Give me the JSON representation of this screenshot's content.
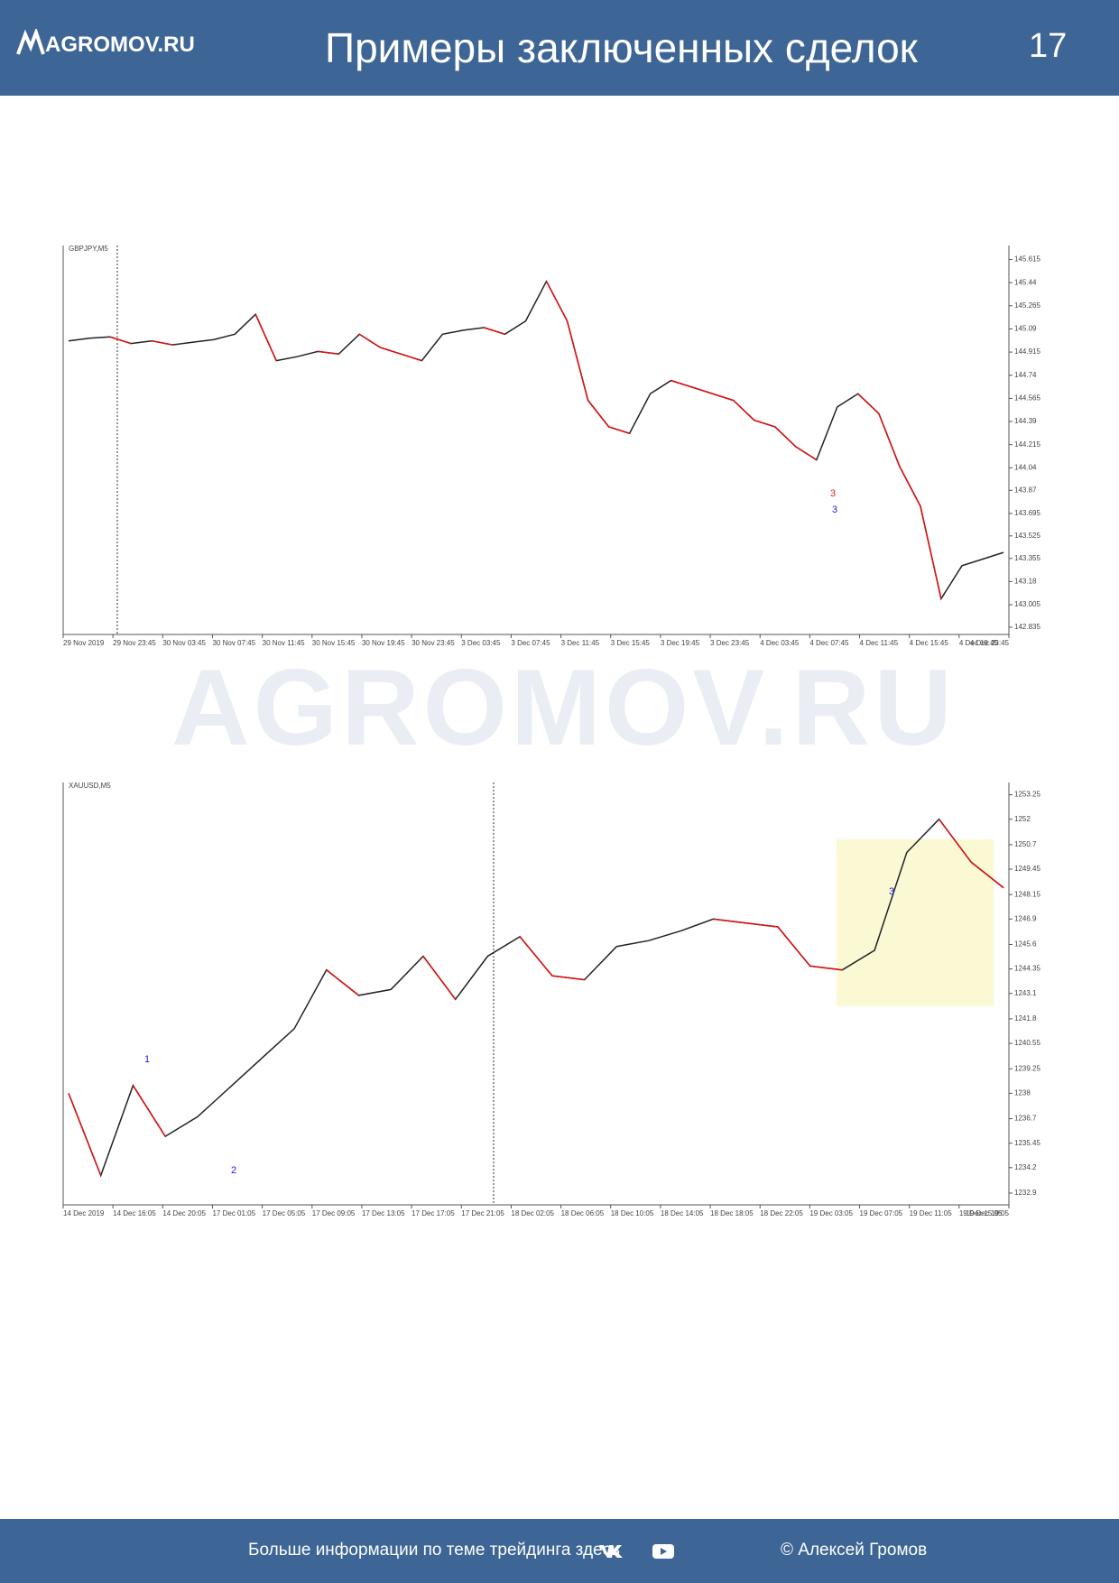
{
  "header": {
    "logo": "AGROMOV.RU",
    "title": "Примеры заключенных сделок",
    "page": "17"
  },
  "watermark": "AGROMOV.RU",
  "chart_data": [
    {
      "type": "line",
      "title": "GBPJPY,M5",
      "color": "#222222",
      "x_tick_labels": [
        "29 Nov 2019",
        "29 Nov 23:45",
        "30 Nov 03:45",
        "30 Nov 07:45",
        "30 Nov 11:45",
        "30 Nov 15:45",
        "30 Nov 19:45",
        "30 Nov 23:45",
        "3 Dec 03:45",
        "3 Dec 07:45",
        "3 Dec 11:45",
        "3 Dec 15:45",
        "3 Dec 19:45",
        "3 Dec 23:45",
        "4 Dec 03:45",
        "4 Dec 07:45",
        "4 Dec 11:45",
        "4 Dec 15:45",
        "4 Dec 19:45",
        "4 Dec 23:45"
      ],
      "values": [
        145.0,
        145.02,
        145.03,
        144.98,
        145.0,
        144.97,
        144.99,
        145.01,
        145.05,
        145.2,
        144.85,
        144.88,
        144.92,
        144.9,
        145.05,
        144.95,
        144.9,
        144.85,
        145.05,
        145.08,
        145.1,
        145.05,
        145.15,
        145.45,
        145.15,
        144.55,
        144.35,
        144.3,
        144.6,
        144.7,
        144.65,
        144.6,
        144.55,
        144.4,
        144.35,
        144.2,
        144.1,
        144.5,
        144.6,
        144.45,
        144.05,
        143.75,
        143.05,
        143.3,
        143.35,
        143.4
      ],
      "ylim": [
        142.78,
        145.68
      ],
      "yticks": [
        145.615,
        145.44,
        145.265,
        145.09,
        144.915,
        144.74,
        144.565,
        144.39,
        144.215,
        144.04,
        143.87,
        143.695,
        143.525,
        143.355,
        143.18,
        143.005,
        142.835
      ],
      "annotations": [
        {
          "text": "3",
          "color": "#e02020"
        },
        {
          "text": "3",
          "color": "#2020e0"
        }
      ]
    },
    {
      "type": "line",
      "title": "XAUUSD,M5",
      "color": "#222222",
      "x_tick_labels": [
        "14 Dec 2019",
        "14 Dec 16:05",
        "14 Dec 20:05",
        "17 Dec 01:05",
        "17 Dec 05:05",
        "17 Dec 09:05",
        "17 Dec 13:05",
        "17 Dec 17:05",
        "17 Dec 21:05",
        "18 Dec 02:05",
        "18 Dec 06:05",
        "18 Dec 10:05",
        "18 Dec 14:05",
        "18 Dec 18:05",
        "18 Dec 22:05",
        "19 Dec 03:05",
        "19 Dec 07:05",
        "19 Dec 11:05",
        "19 Dec 15:05",
        "19 Dec 19:05"
      ],
      "values": [
        1238.0,
        1233.8,
        1238.4,
        1235.8,
        1236.8,
        1238.3,
        1239.8,
        1241.3,
        1244.3,
        1243.0,
        1243.3,
        1245.0,
        1242.8,
        1245.0,
        1246.0,
        1244.0,
        1243.8,
        1245.5,
        1245.8,
        1246.3,
        1246.9,
        1246.7,
        1246.5,
        1244.5,
        1244.3,
        1245.3,
        1250.3,
        1252.0,
        1249.8,
        1248.5
      ],
      "ylim": [
        1232.3,
        1253.6
      ],
      "yticks": [
        1253.25,
        1252.0,
        1250.7,
        1249.45,
        1248.15,
        1246.9,
        1245.6,
        1244.35,
        1243.1,
        1241.8,
        1240.55,
        1239.25,
        1238.0,
        1236.7,
        1235.45,
        1234.2,
        1232.9
      ],
      "annotations": [
        {
          "text": "1",
          "color": "#2020e0"
        },
        {
          "text": "2",
          "color": "#2020e0"
        },
        {
          "text": "3",
          "color": "#2020e0"
        }
      ]
    }
  ],
  "footer": {
    "info": "Больше информации по теме трейдинга здесь",
    "author": "© Алексей Громов"
  }
}
